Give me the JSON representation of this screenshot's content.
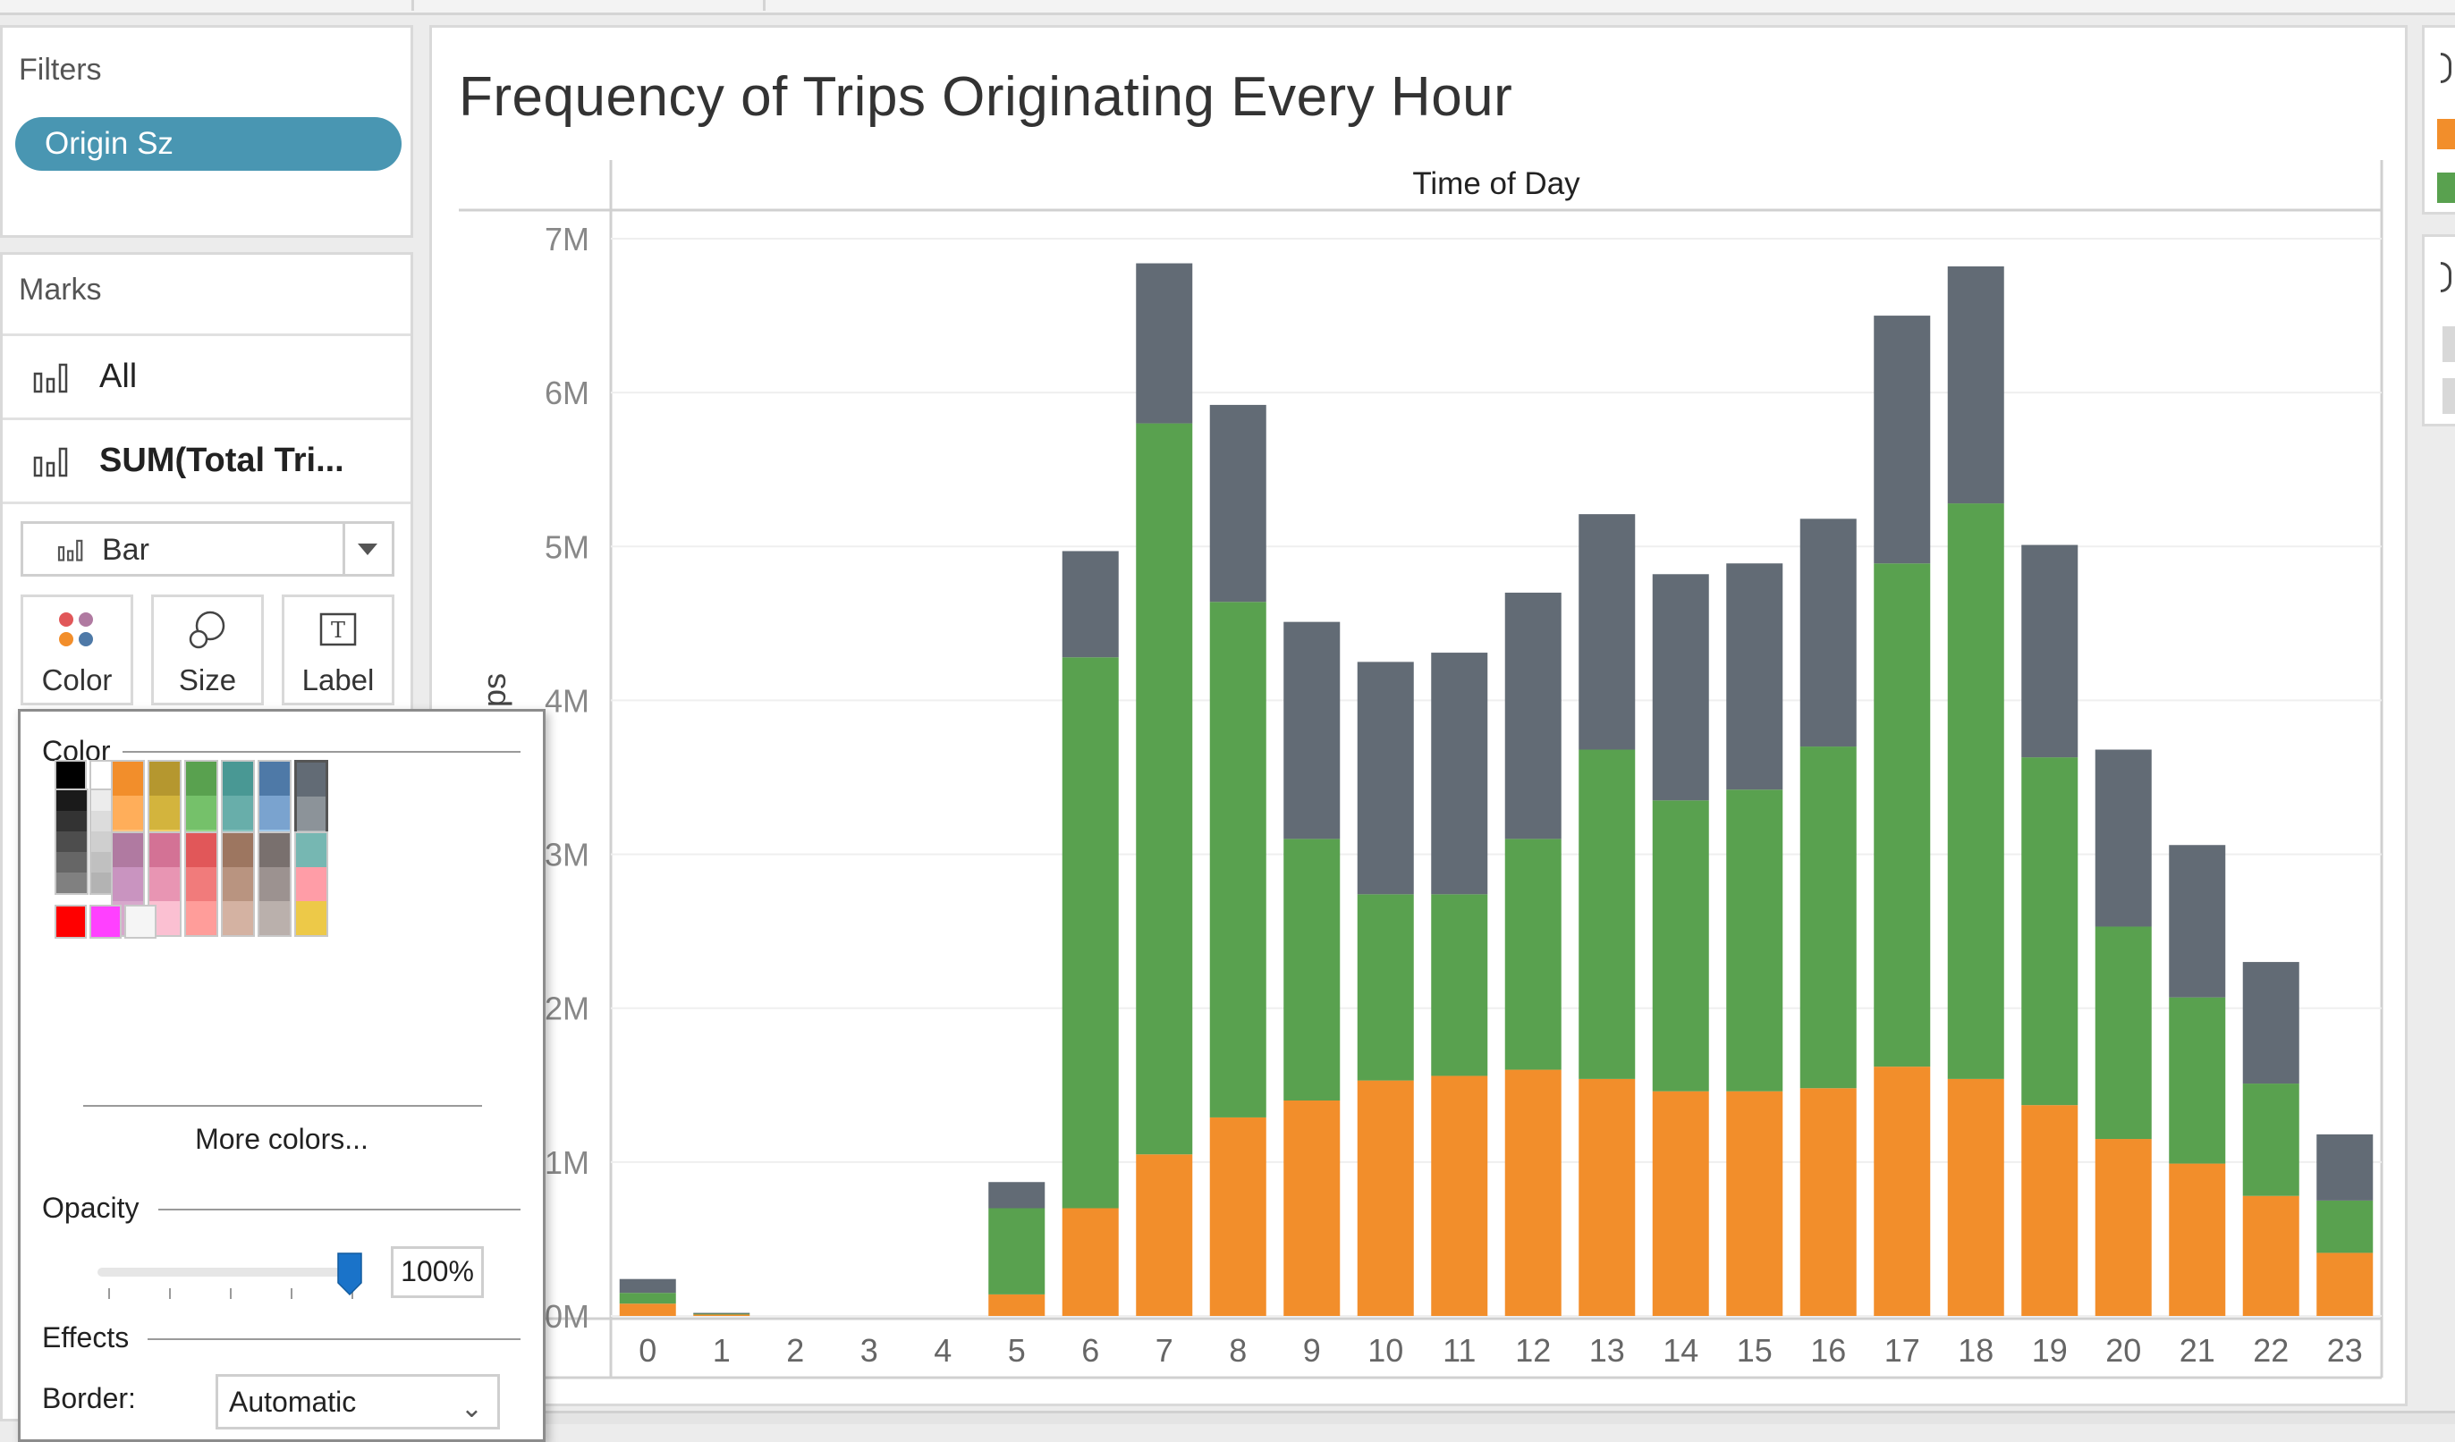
{
  "filters": {
    "title": "Filters",
    "pills": [
      {
        "label": "Origin Sz",
        "color": "#4996b2"
      }
    ]
  },
  "marks": {
    "title": "Marks",
    "rows": [
      {
        "label": "All",
        "icon": "bar-chart-icon",
        "bold": false
      },
      {
        "label": "SUM(Total Tri...",
        "icon": "bar-chart-icon",
        "bold": true
      }
    ],
    "mark_type": "Bar",
    "buttons": [
      {
        "label": "Color",
        "icon": "color-dots-icon"
      },
      {
        "label": "Size",
        "icon": "size-circles-icon"
      },
      {
        "label": "Label",
        "icon": "text-label-icon"
      }
    ]
  },
  "color_popup": {
    "color_title": "Color",
    "more_colors": "More colors...",
    "opacity_title": "Opacity",
    "opacity_value": "100%",
    "opacity_fraction": 1.0,
    "effects_title": "Effects",
    "border_label": "Border:",
    "border_value": "Automatic",
    "swatch_columns": [
      [
        "#f28e2b",
        "#ffae5a",
        "#ffc481"
      ],
      [
        "#b5972f",
        "#d3b43d",
        "#f1d06a"
      ],
      [
        "#59a14f",
        "#75c16a",
        "#96d889"
      ],
      [
        "#499894",
        "#68aeaa",
        "#88c5bf"
      ],
      [
        "#4e79a7",
        "#7aa3cf",
        "#a1c9ec"
      ],
      [
        "#626b75",
        "#8c9399",
        "#b0b5b8"
      ],
      [
        "#b07aa1",
        "#c994c0",
        "#d7a8cc"
      ],
      [
        "#d37295",
        "#e895b3",
        "#fbc0d2"
      ],
      [
        "#e15759",
        "#f17b7b",
        "#ff9d9a"
      ],
      [
        "#9d7660",
        "#b99480",
        "#d4b2a2"
      ],
      [
        "#79706e",
        "#9c9290",
        "#bab0ac"
      ],
      [
        "#76b7b2",
        "#ff9da7",
        "#edc948"
      ]
    ],
    "grays": [
      "#1a1a1a",
      "#333333",
      "#4d4d4d",
      "#666666",
      "#808080"
    ],
    "light_grays": [
      "#ececec",
      "#dcdcdc",
      "#cfcfcf",
      "#c0c0c0",
      "#b3b3b3"
    ],
    "basic": {
      "black": "#000000",
      "white": "#ffffff",
      "red": "#ff0000",
      "magenta": "#ff40ff",
      "near_white": "#f5f5f5"
    }
  },
  "chart_data": {
    "type": "bar",
    "stacked": true,
    "title": "Frequency of Trips Originating Every Hour",
    "column_header": "Time of Day",
    "ylabel_fragment": "ps",
    "categories": [
      "0",
      "1",
      "2",
      "3",
      "4",
      "5",
      "6",
      "7",
      "8",
      "9",
      "10",
      "11",
      "12",
      "13",
      "14",
      "15",
      "16",
      "17",
      "18",
      "19",
      "20",
      "21",
      "22",
      "23"
    ],
    "ylim": [
      0,
      7000000
    ],
    "yticks": [
      0,
      1000000,
      2000000,
      3000000,
      4000000,
      5000000,
      6000000,
      7000000
    ],
    "ytick_labels": [
      "0M",
      "1M",
      "2M",
      "3M",
      "4M",
      "5M",
      "6M",
      "7M"
    ],
    "series": [
      {
        "color": "#f28e2b",
        "values": [
          80000,
          10000,
          0,
          0,
          0,
          140000,
          700000,
          1050000,
          1290000,
          1400000,
          1530000,
          1560000,
          1600000,
          1540000,
          1460000,
          1460000,
          1480000,
          1620000,
          1540000,
          1370000,
          1150000,
          990000,
          780000,
          410000
        ]
      },
      {
        "color": "#59a14f",
        "values": [
          70000,
          5000,
          0,
          0,
          0,
          560000,
          3580000,
          4750000,
          3350000,
          1700000,
          1210000,
          1180000,
          1500000,
          2140000,
          1890000,
          1960000,
          2220000,
          3270000,
          3740000,
          2260000,
          1380000,
          1080000,
          730000,
          340000
        ]
      },
      {
        "color": "#626b75",
        "values": [
          90000,
          5000,
          0,
          0,
          0,
          170000,
          690000,
          1040000,
          1280000,
          1410000,
          1510000,
          1570000,
          1600000,
          1530000,
          1470000,
          1470000,
          1480000,
          1610000,
          1540000,
          1380000,
          1150000,
          990000,
          790000,
          430000
        ]
      }
    ],
    "grid": true
  },
  "legend": {
    "items": [
      {
        "color": "#f28e2b"
      },
      {
        "color": "#59a14f"
      }
    ],
    "filter_items": [
      {
        "color": "#d8d8d8"
      },
      {
        "color": "#d8d8d8"
      }
    ]
  }
}
